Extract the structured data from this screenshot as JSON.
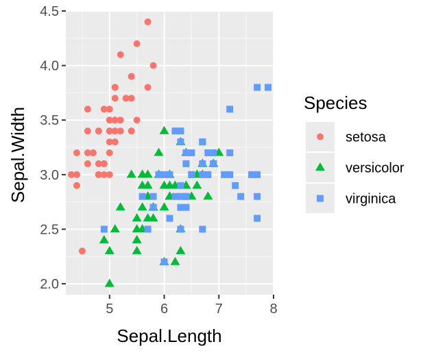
{
  "chart_data": {
    "type": "scatter",
    "xlabel": "Sepal.Length",
    "ylabel": "Sepal.Width",
    "xlim": [
      4.2,
      8.0
    ],
    "ylim": [
      1.9,
      4.5
    ],
    "x_ticks": [
      "5",
      "6",
      "7",
      "8"
    ],
    "x_tick_values": [
      5,
      6,
      7,
      8
    ],
    "y_ticks": [
      "2.0",
      "2.5",
      "3.0",
      "3.5",
      "4.0",
      "4.5"
    ],
    "y_tick_values": [
      2.0,
      2.5,
      3.0,
      3.5,
      4.0,
      4.5
    ],
    "grid": true,
    "legend": {
      "title": "Species",
      "placement": "right",
      "entries": [
        {
          "label": "setosa",
          "shape": "circle",
          "color": "#F8766D"
        },
        {
          "label": "versicolor",
          "shape": "triangle",
          "color": "#00BA38"
        },
        {
          "label": "virginica",
          "shape": "square",
          "color": "#619CFF"
        }
      ]
    },
    "series": [
      {
        "name": "setosa",
        "shape": "circle",
        "color": "#F8766D",
        "points": [
          [
            5.1,
            3.5
          ],
          [
            4.9,
            3.0
          ],
          [
            4.7,
            3.2
          ],
          [
            4.6,
            3.1
          ],
          [
            5.0,
            3.6
          ],
          [
            5.4,
            3.9
          ],
          [
            4.6,
            3.4
          ],
          [
            5.0,
            3.4
          ],
          [
            4.4,
            2.9
          ],
          [
            4.9,
            3.1
          ],
          [
            5.4,
            3.7
          ],
          [
            4.8,
            3.4
          ],
          [
            4.8,
            3.0
          ],
          [
            4.3,
            3.0
          ],
          [
            5.8,
            4.0
          ],
          [
            5.7,
            4.4
          ],
          [
            5.4,
            3.9
          ],
          [
            5.1,
            3.5
          ],
          [
            5.7,
            3.8
          ],
          [
            5.1,
            3.8
          ],
          [
            5.4,
            3.4
          ],
          [
            5.1,
            3.7
          ],
          [
            4.6,
            3.6
          ],
          [
            5.1,
            3.3
          ],
          [
            4.8,
            3.4
          ],
          [
            5.0,
            3.0
          ],
          [
            5.0,
            3.4
          ],
          [
            5.2,
            3.5
          ],
          [
            5.2,
            3.4
          ],
          [
            4.7,
            3.2
          ],
          [
            4.8,
            3.1
          ],
          [
            5.4,
            3.4
          ],
          [
            5.2,
            4.1
          ],
          [
            5.5,
            4.2
          ],
          [
            4.9,
            3.1
          ],
          [
            5.0,
            3.2
          ],
          [
            5.5,
            3.5
          ],
          [
            4.9,
            3.6
          ],
          [
            4.4,
            3.0
          ],
          [
            5.1,
            3.4
          ],
          [
            5.0,
            3.5
          ],
          [
            4.5,
            2.3
          ],
          [
            4.4,
            3.2
          ],
          [
            5.0,
            3.5
          ],
          [
            5.1,
            3.8
          ],
          [
            4.8,
            3.0
          ],
          [
            5.1,
            3.8
          ],
          [
            4.6,
            3.2
          ],
          [
            5.3,
            3.7
          ],
          [
            5.0,
            3.3
          ]
        ]
      },
      {
        "name": "versicolor",
        "shape": "triangle",
        "color": "#00BA38",
        "points": [
          [
            7.0,
            3.2
          ],
          [
            6.4,
            3.2
          ],
          [
            6.9,
            3.1
          ],
          [
            5.5,
            2.3
          ],
          [
            6.5,
            2.8
          ],
          [
            5.7,
            2.8
          ],
          [
            6.3,
            3.3
          ],
          [
            4.9,
            2.4
          ],
          [
            6.6,
            2.9
          ],
          [
            5.2,
            2.7
          ],
          [
            5.0,
            2.0
          ],
          [
            5.9,
            3.0
          ],
          [
            6.0,
            2.2
          ],
          [
            6.1,
            2.9
          ],
          [
            5.6,
            2.9
          ],
          [
            6.7,
            3.1
          ],
          [
            5.6,
            3.0
          ],
          [
            5.8,
            2.7
          ],
          [
            6.2,
            2.2
          ],
          [
            5.6,
            2.5
          ],
          [
            5.9,
            3.2
          ],
          [
            6.1,
            2.8
          ],
          [
            6.3,
            2.5
          ],
          [
            6.1,
            2.8
          ],
          [
            6.4,
            2.9
          ],
          [
            6.6,
            3.0
          ],
          [
            6.8,
            2.8
          ],
          [
            6.7,
            3.0
          ],
          [
            6.0,
            2.9
          ],
          [
            5.7,
            2.6
          ],
          [
            5.5,
            2.4
          ],
          [
            5.5,
            2.4
          ],
          [
            5.8,
            2.7
          ],
          [
            6.0,
            2.7
          ],
          [
            5.4,
            3.0
          ],
          [
            6.0,
            3.4
          ],
          [
            6.7,
            3.1
          ],
          [
            6.3,
            2.3
          ],
          [
            5.6,
            3.0
          ],
          [
            5.5,
            2.5
          ],
          [
            5.5,
            2.6
          ],
          [
            6.1,
            3.0
          ],
          [
            5.8,
            2.6
          ],
          [
            5.0,
            2.3
          ],
          [
            5.6,
            2.7
          ],
          [
            5.7,
            3.0
          ],
          [
            5.7,
            2.9
          ],
          [
            6.2,
            2.9
          ],
          [
            5.1,
            2.5
          ],
          [
            5.7,
            2.8
          ]
        ]
      },
      {
        "name": "virginica",
        "shape": "square",
        "color": "#619CFF",
        "points": [
          [
            6.3,
            3.3
          ],
          [
            5.8,
            2.7
          ],
          [
            7.1,
            3.0
          ],
          [
            6.3,
            2.9
          ],
          [
            6.5,
            3.0
          ],
          [
            7.6,
            3.0
          ],
          [
            4.9,
            2.5
          ],
          [
            7.3,
            2.9
          ],
          [
            6.7,
            2.5
          ],
          [
            7.2,
            3.6
          ],
          [
            6.5,
            3.2
          ],
          [
            6.4,
            2.7
          ],
          [
            6.8,
            3.0
          ],
          [
            5.7,
            2.5
          ],
          [
            5.8,
            2.8
          ],
          [
            6.4,
            3.2
          ],
          [
            6.5,
            3.0
          ],
          [
            7.7,
            3.8
          ],
          [
            7.7,
            2.6
          ],
          [
            6.0,
            2.2
          ],
          [
            6.9,
            3.2
          ],
          [
            5.6,
            2.8
          ],
          [
            7.7,
            2.8
          ],
          [
            6.3,
            2.7
          ],
          [
            6.7,
            3.3
          ],
          [
            7.2,
            3.2
          ],
          [
            6.2,
            2.8
          ],
          [
            6.1,
            3.0
          ],
          [
            6.4,
            2.8
          ],
          [
            7.2,
            3.0
          ],
          [
            7.4,
            2.8
          ],
          [
            7.9,
            3.8
          ],
          [
            6.4,
            2.8
          ],
          [
            6.3,
            2.8
          ],
          [
            6.1,
            2.6
          ],
          [
            7.7,
            3.0
          ],
          [
            6.3,
            3.4
          ],
          [
            6.4,
            3.1
          ],
          [
            6.0,
            3.0
          ],
          [
            6.9,
            3.1
          ],
          [
            6.7,
            3.1
          ],
          [
            6.9,
            3.1
          ],
          [
            5.8,
            2.7
          ],
          [
            6.8,
            3.2
          ],
          [
            6.7,
            3.3
          ],
          [
            6.7,
            3.0
          ],
          [
            6.3,
            2.5
          ],
          [
            6.5,
            3.0
          ],
          [
            6.2,
            3.4
          ],
          [
            5.9,
            3.0
          ]
        ]
      }
    ]
  }
}
